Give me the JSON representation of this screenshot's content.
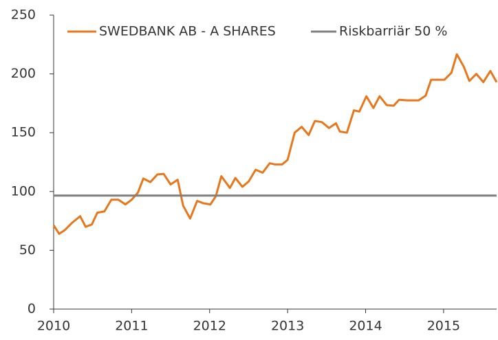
{
  "chart_data": {
    "type": "line",
    "xlim": [
      2010,
      2015.68
    ],
    "xticks": [
      2010,
      2011,
      2012,
      2013,
      2014,
      2015
    ],
    "ylim": [
      0,
      250
    ],
    "yticks": [
      0,
      50,
      100,
      150,
      200,
      250
    ],
    "grid": false,
    "legend": "top",
    "series": [
      {
        "name": "SWEDBANK AB - A SHARES",
        "color": "#e8761b",
        "x": [
          2010.0,
          2010.07,
          2010.14,
          2010.23,
          2010.34,
          2010.41,
          2010.49,
          2010.56,
          2010.65,
          2010.74,
          2010.83,
          2010.92,
          2011.0,
          2011.08,
          2011.15,
          2011.24,
          2011.33,
          2011.41,
          2011.5,
          2011.59,
          2011.66,
          2011.75,
          2011.84,
          2011.92,
          2012.01,
          2012.08,
          2012.15,
          2012.26,
          2012.33,
          2012.42,
          2012.5,
          2012.59,
          2012.68,
          2012.77,
          2012.84,
          2012.93,
          2013.0,
          2013.09,
          2013.18,
          2013.27,
          2013.35,
          2013.44,
          2013.53,
          2013.62,
          2013.67,
          2013.76,
          2013.85,
          2013.92,
          2014.01,
          2014.1,
          2014.18,
          2014.27,
          2014.36,
          2014.43,
          2014.54,
          2014.68,
          2014.77,
          2014.84,
          2014.92,
          2015.01,
          2015.1,
          2015.17,
          2015.26,
          2015.33,
          2015.42,
          2015.51,
          2015.6,
          2015.68
        ],
        "values": [
          71.3,
          64,
          67,
          73,
          79,
          70,
          72,
          82,
          83,
          93,
          93,
          89,
          93,
          99,
          111,
          108,
          114.5,
          115,
          106,
          110,
          88,
          77,
          92,
          90,
          89,
          96,
          113,
          103,
          111.5,
          104,
          108.5,
          118.5,
          116,
          124,
          123,
          123,
          127,
          150,
          155,
          148,
          160,
          159,
          154,
          158,
          151,
          150,
          169,
          168,
          181,
          171,
          181,
          173.5,
          173,
          178,
          177.5,
          177.5,
          181.5,
          195,
          195,
          195,
          201,
          216.7,
          206,
          194,
          200,
          193,
          202.5,
          193
        ]
      },
      {
        "name": "Riskbarriär 50 %",
        "color": "#7f7f7f",
        "x": [
          2010,
          2015.68
        ],
        "values": [
          96.5,
          96.5
        ]
      }
    ]
  }
}
